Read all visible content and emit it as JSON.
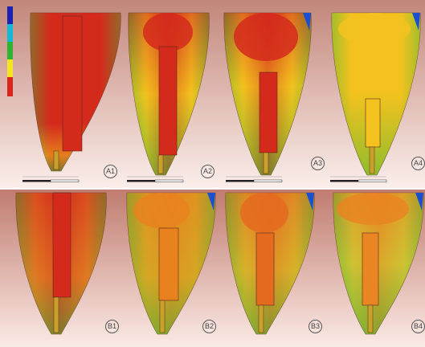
{
  "colors": {
    "row_a_background_top": "#c2867a",
    "row_a_background_bottom": "#fbeeea",
    "row_b_background_top": "#c07c6f",
    "row_b_background_bottom": "#fbeae5",
    "scale": [
      "#1b22b0",
      "#14b9d8",
      "#2fb432",
      "#f6e524",
      "#d7261c"
    ],
    "stress_high": "#d42a1c",
    "stress_mid": "#f3c21e",
    "stress_low": "#3fb83a",
    "stress_lowest": "#1a4fd0"
  },
  "row_a": {
    "panels": [
      {
        "label": "A1"
      },
      {
        "label": "A2"
      },
      {
        "label": "A3"
      },
      {
        "label": "A4"
      }
    ]
  },
  "row_b": {
    "panels": [
      {
        "label": "B1"
      },
      {
        "label": "B2"
      },
      {
        "label": "B3"
      },
      {
        "label": "B4"
      }
    ]
  }
}
